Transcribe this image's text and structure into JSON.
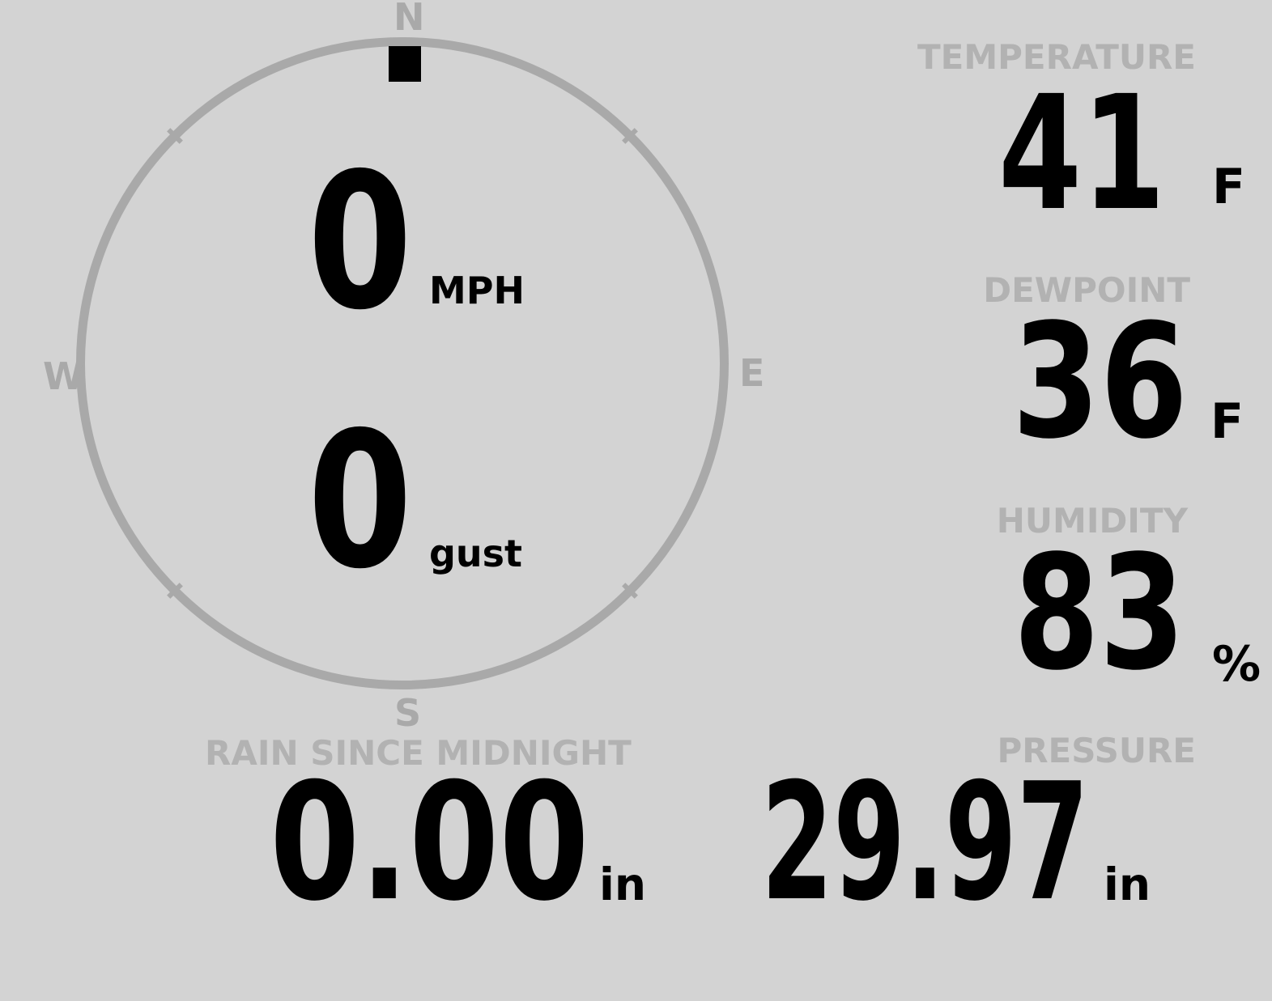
{
  "colors": {
    "background": "#d3d3d3",
    "ring": "#a9a9a9",
    "label": "#b2b2b2",
    "value": "#000000"
  },
  "compass": {
    "north": "N",
    "east": "E",
    "south": "S",
    "west": "W",
    "wind_direction": "N",
    "speed": {
      "value": "0",
      "unit": "MPH"
    },
    "gust": {
      "value": "0",
      "unit": "gust"
    }
  },
  "metrics": {
    "temperature": {
      "label": "TEMPERATURE",
      "value": "41",
      "unit": "F"
    },
    "dewpoint": {
      "label": "DEWPOINT",
      "value": "36",
      "unit": "F"
    },
    "humidity": {
      "label": "HUMIDITY",
      "value": "83",
      "unit": "%"
    },
    "pressure": {
      "label": "PRESSURE",
      "value": "29.97",
      "unit": "in"
    },
    "rain_since_midnight": {
      "label": "RAIN SINCE MIDNIGHT",
      "value": "0.00",
      "unit": "in"
    }
  }
}
